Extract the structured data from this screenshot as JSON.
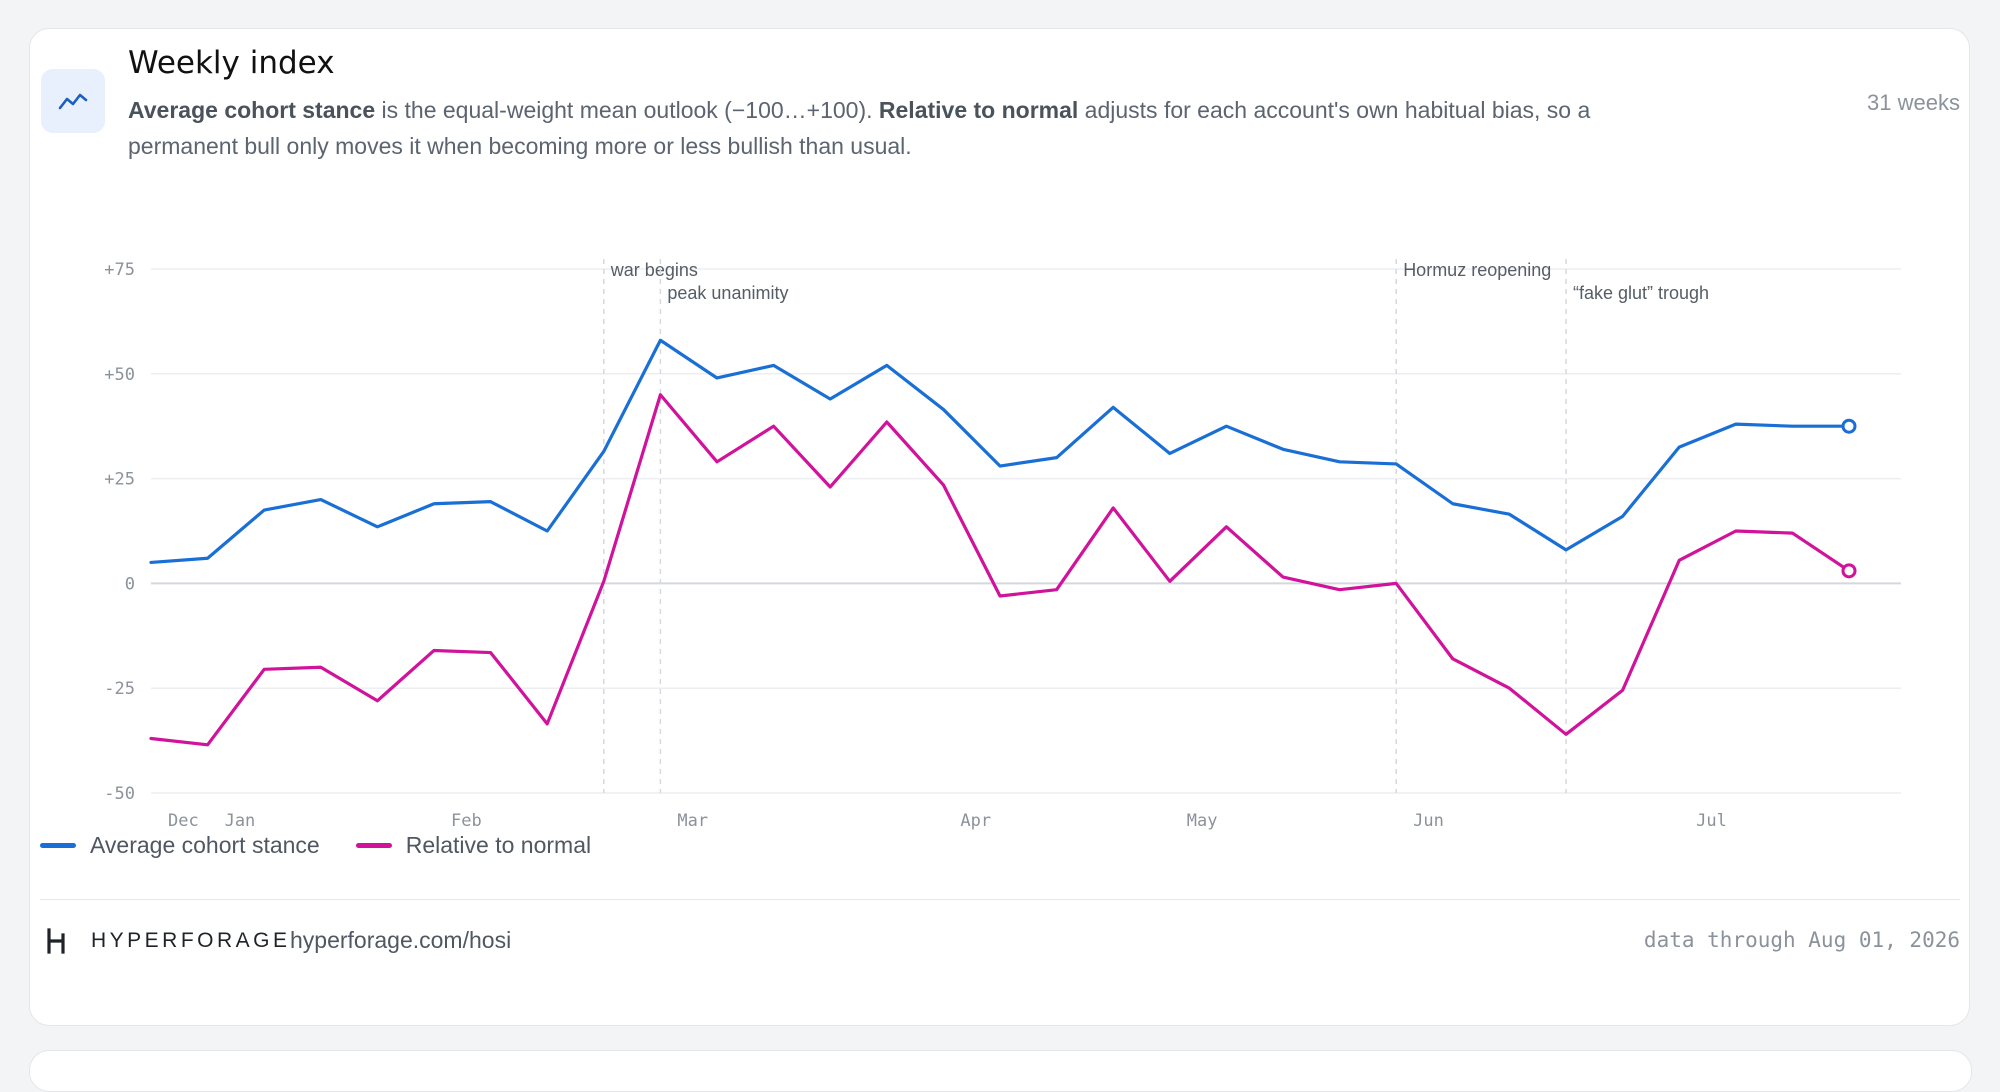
{
  "card": {
    "title": "Weekly index",
    "desc_bold1": "Average cohort stance",
    "desc_text1": " is the equal-weight mean outlook (−100…+100). ",
    "desc_bold2": "Relative to normal",
    "desc_text2": " adjusts for each account's own habitual bias, so a permanent bull only moves it when becoming more or less bullish than usual.",
    "weeks_label": "31 weeks"
  },
  "icon": "trend-line-icon",
  "chart_data": {
    "type": "line",
    "ylim": [
      -50,
      75
    ],
    "yticks": [
      75,
      50,
      25,
      0,
      -25,
      -50
    ],
    "ytick_labels": [
      "+75",
      "+50",
      "+25",
      "0",
      "-25",
      "-50"
    ],
    "xlim": [
      0,
      30.8
    ],
    "xticks": [
      {
        "x": 0.3,
        "label": "Dec"
      },
      {
        "x": 1.3,
        "label": "Jan"
      },
      {
        "x": 5.3,
        "label": "Feb"
      },
      {
        "x": 9.3,
        "label": "Mar"
      },
      {
        "x": 14.3,
        "label": "Apr"
      },
      {
        "x": 18.3,
        "label": "May"
      },
      {
        "x": 22.3,
        "label": "Jun"
      },
      {
        "x": 27.3,
        "label": "Jul"
      }
    ],
    "grid": true,
    "legend": "bottom-left",
    "series": [
      {
        "name": "Average cohort stance",
        "color": "#1a6fd6",
        "values": [
          5,
          6,
          17.5,
          20,
          13.5,
          19,
          19.5,
          12.5,
          31.5,
          58,
          49,
          52,
          44,
          52,
          41.5,
          28,
          30,
          42,
          31,
          37.5,
          32,
          29,
          28.5,
          19,
          16.5,
          8,
          16,
          32.5,
          38,
          37.5,
          37.5
        ]
      },
      {
        "name": "Relative to normal",
        "color": "#d1129a",
        "values": [
          -37,
          -38.5,
          -20.5,
          -20,
          -28,
          -16,
          -16.5,
          -33.5,
          0.5,
          45,
          29,
          37.5,
          23,
          38.5,
          23.5,
          -3,
          -1.5,
          18,
          0.5,
          13.5,
          1.5,
          -1.5,
          0,
          -18,
          -25,
          -36,
          -25.5,
          5.5,
          12.5,
          12,
          3
        ]
      }
    ],
    "annotations": [
      {
        "x": 8,
        "label": "war begins",
        "row": 0
      },
      {
        "x": 9,
        "label": "peak unanimity",
        "row": 1
      },
      {
        "x": 22,
        "label": "Hormuz reopening",
        "row": 0
      },
      {
        "x": 25,
        "label": "“fake glut” trough",
        "row": 1
      }
    ]
  },
  "footer": {
    "brand": "HYPERFORAGE",
    "url": "hyperforage.com/hosi",
    "through": "data through Aug 01, 2026"
  }
}
